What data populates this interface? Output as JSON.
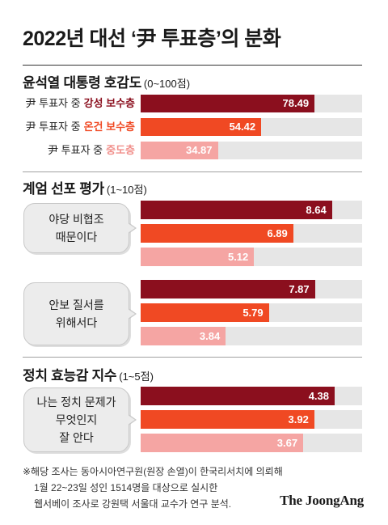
{
  "title": "2022년 대선 ‘尹 투표층’의 분화",
  "colors": {
    "series": [
      "#8b0f1e",
      "#f04923",
      "#f5a5a3"
    ],
    "label": [
      "#8b0f1e",
      "#f04923",
      "#f1908c"
    ],
    "track": "#e6e6e6",
    "bubble": "#ececec"
  },
  "chart_data": [
    {
      "type": "bar",
      "orientation": "horizontal",
      "title": "윤석열 대통령 호감도",
      "unit": "(0~100점)",
      "xlim": [
        0,
        100
      ],
      "categories": [
        {
          "prefix": "尹 투표자 중",
          "group": "강성 보수층"
        },
        {
          "prefix": "尹 투표자 중",
          "group": "온건 보수층"
        },
        {
          "prefix": "尹 투표자 중",
          "group": "중도층"
        }
      ],
      "values": [
        78.49,
        54.42,
        34.87
      ]
    },
    {
      "type": "bar",
      "orientation": "horizontal",
      "title": "계엄 선포 평가",
      "unit": "(1~10점)",
      "xlim": [
        0,
        10
      ],
      "groups": [
        {
          "question": [
            "야당 비협조",
            "때문이다"
          ],
          "values": [
            8.64,
            6.89,
            5.12
          ]
        },
        {
          "question": [
            "안보 질서를",
            "위해서다"
          ],
          "values": [
            7.87,
            5.79,
            3.84
          ]
        }
      ]
    },
    {
      "type": "bar",
      "orientation": "horizontal",
      "title": "정치 효능감 지수",
      "unit": "(1~5점)",
      "xlim": [
        0,
        5
      ],
      "groups": [
        {
          "question": [
            "나는 정치 문제가",
            "무엇인지",
            "잘 안다"
          ],
          "values": [
            4.38,
            3.92,
            3.67
          ]
        }
      ]
    }
  ],
  "footnote": [
    "※해당 조사는 동아시아연구원(원장 손열)이 한국리서치에 의뢰해",
    "1월 22~23일 성인 1514명을 대상으로 실시한",
    "웹서베이 조사로 강원택 서울대 교수가 연구 분석."
  ],
  "logo": "The JoongAng"
}
